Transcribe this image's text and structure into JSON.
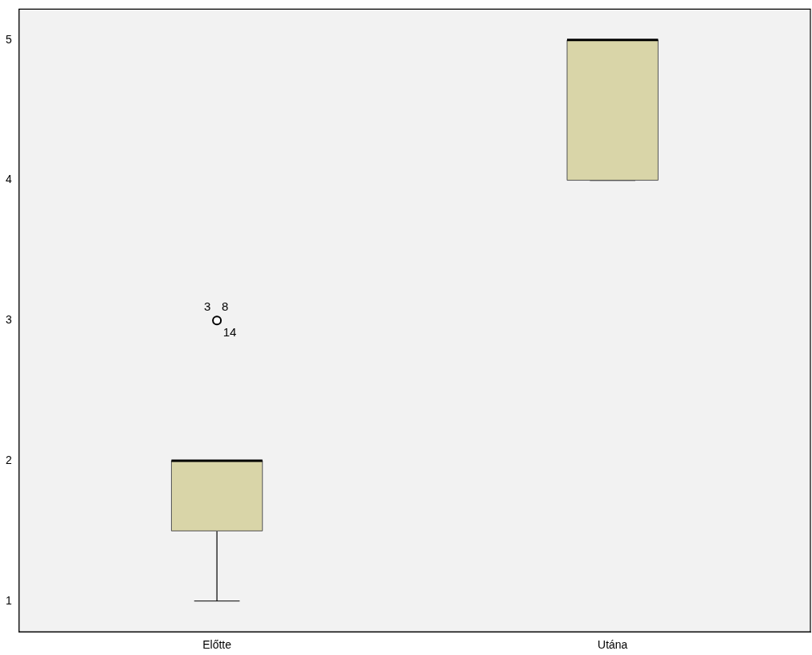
{
  "chart_data": {
    "type": "box",
    "categories": [
      "Előtte",
      "Utána"
    ],
    "color": "#d9d5a8",
    "boxes": [
      {
        "low": 1,
        "q1": 1.5,
        "median": 2,
        "q3": 2,
        "high": 2,
        "outliers": [
          3
        ]
      },
      {
        "low": 4,
        "q1": 4,
        "median": 5,
        "q3": 5,
        "high": 5
      }
    ],
    "ylim": [
      0.78,
      5.22
    ],
    "yticks": [
      1,
      2,
      3,
      4,
      5
    ],
    "grid": false,
    "legend": false,
    "annotations": [
      "3",
      "8",
      "14"
    ]
  }
}
